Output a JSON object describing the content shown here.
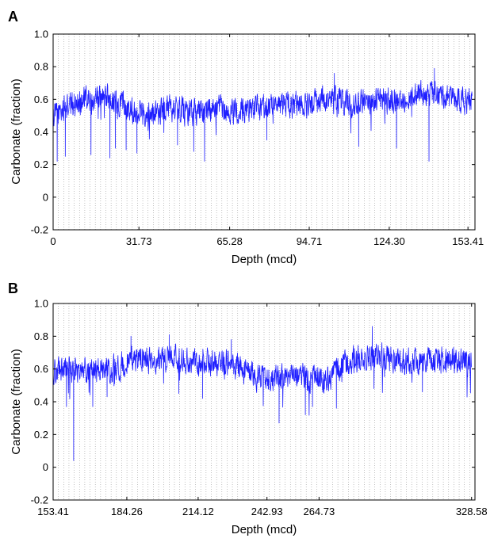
{
  "chart_data": [
    {
      "panel_label": "A",
      "type": "line",
      "xlabel": "Depth (mcd)",
      "ylabel": "Carbonate (fraction)",
      "xlim": [
        0,
        156
      ],
      "ylim": [
        -0.2,
        1.0
      ],
      "x_ticks": [
        0,
        31.73,
        65.28,
        94.71,
        124.3,
        153.41
      ],
      "x_tick_labels": [
        "0",
        "31.73",
        "65.28",
        "94.71",
        "124.30",
        "153.41"
      ],
      "y_ticks": [
        -0.2,
        0,
        0.2,
        0.4,
        0.6,
        0.8,
        1.0
      ],
      "y_tick_labels": [
        "-0.2",
        "0",
        "0.2",
        "0.4",
        "0.6",
        "0.8",
        "1.0"
      ],
      "grid": "vertical dotted lines",
      "series_color": "#1f1fff",
      "trend": [
        [
          0,
          0.5
        ],
        [
          5,
          0.55
        ],
        [
          10,
          0.59
        ],
        [
          15,
          0.6
        ],
        [
          20,
          0.61
        ],
        [
          25,
          0.58
        ],
        [
          30,
          0.53
        ],
        [
          35,
          0.52
        ],
        [
          40,
          0.53
        ],
        [
          45,
          0.55
        ],
        [
          50,
          0.52
        ],
        [
          55,
          0.53
        ],
        [
          60,
          0.54
        ],
        [
          65,
          0.52
        ],
        [
          70,
          0.54
        ],
        [
          75,
          0.55
        ],
        [
          80,
          0.56
        ],
        [
          85,
          0.57
        ],
        [
          90,
          0.56
        ],
        [
          95,
          0.56
        ],
        [
          100,
          0.6
        ],
        [
          105,
          0.59
        ],
        [
          110,
          0.57
        ],
        [
          115,
          0.58
        ],
        [
          120,
          0.59
        ],
        [
          125,
          0.6
        ],
        [
          130,
          0.6
        ],
        [
          135,
          0.63
        ],
        [
          140,
          0.63
        ],
        [
          145,
          0.62
        ],
        [
          150,
          0.6
        ],
        [
          155,
          0.6
        ]
      ],
      "spikes": [
        [
          1.5,
          0.22
        ],
        [
          4.5,
          0.25
        ],
        [
          14,
          0.26
        ],
        [
          21,
          0.24
        ],
        [
          23,
          0.3
        ],
        [
          27,
          0.29
        ],
        [
          31,
          0.27
        ],
        [
          46,
          0.32
        ],
        [
          52,
          0.28
        ],
        [
          56,
          0.22
        ],
        [
          79,
          0.35
        ],
        [
          104,
          0.76
        ],
        [
          113,
          0.31
        ],
        [
          127,
          0.3
        ],
        [
          139,
          0.22
        ],
        [
          141,
          0.79
        ]
      ],
      "noise": 0.05
    },
    {
      "panel_label": "B",
      "type": "line",
      "xlabel": "Depth (mcd)",
      "ylabel": "Carbonate (fraction)",
      "xlim": [
        153.41,
        330
      ],
      "ylim": [
        -0.2,
        1.0
      ],
      "x_ticks": [
        153.41,
        184.26,
        214.12,
        242.93,
        264.73,
        328.58
      ],
      "x_tick_labels": [
        "153.41",
        "184.26",
        "214.12",
        "242.93",
        "264.73",
        "328.58"
      ],
      "y_ticks": [
        -0.2,
        0,
        0.2,
        0.4,
        0.6,
        0.8,
        1.0
      ],
      "y_tick_labels": [
        "-0.2",
        "0",
        "0.2",
        "0.4",
        "0.6",
        "0.8",
        "1.0"
      ],
      "grid": "vertical dotted lines",
      "series_color": "#1f1fff",
      "trend": [
        [
          153.41,
          0.58
        ],
        [
          160,
          0.6
        ],
        [
          170,
          0.6
        ],
        [
          180,
          0.6
        ],
        [
          185,
          0.66
        ],
        [
          195,
          0.66
        ],
        [
          205,
          0.67
        ],
        [
          215,
          0.64
        ],
        [
          225,
          0.64
        ],
        [
          232,
          0.62
        ],
        [
          238,
          0.55
        ],
        [
          245,
          0.55
        ],
        [
          255,
          0.56
        ],
        [
          262,
          0.54
        ],
        [
          268,
          0.53
        ],
        [
          272,
          0.6
        ],
        [
          280,
          0.66
        ],
        [
          290,
          0.68
        ],
        [
          300,
          0.64
        ],
        [
          310,
          0.65
        ],
        [
          320,
          0.65
        ],
        [
          328.58,
          0.64
        ]
      ],
      "spikes": [
        [
          159,
          0.37
        ],
        [
          162,
          0.04
        ],
        [
          170,
          0.37
        ],
        [
          176,
          0.43
        ],
        [
          186,
          0.8
        ],
        [
          202,
          0.81
        ],
        [
          206,
          0.45
        ],
        [
          216,
          0.42
        ],
        [
          228,
          0.78
        ],
        [
          248,
          0.27
        ],
        [
          259,
          0.32
        ],
        [
          262,
          0.37
        ],
        [
          272,
          0.36
        ],
        [
          287,
          0.86
        ],
        [
          308,
          0.46
        ]
      ],
      "noise": 0.05
    }
  ]
}
